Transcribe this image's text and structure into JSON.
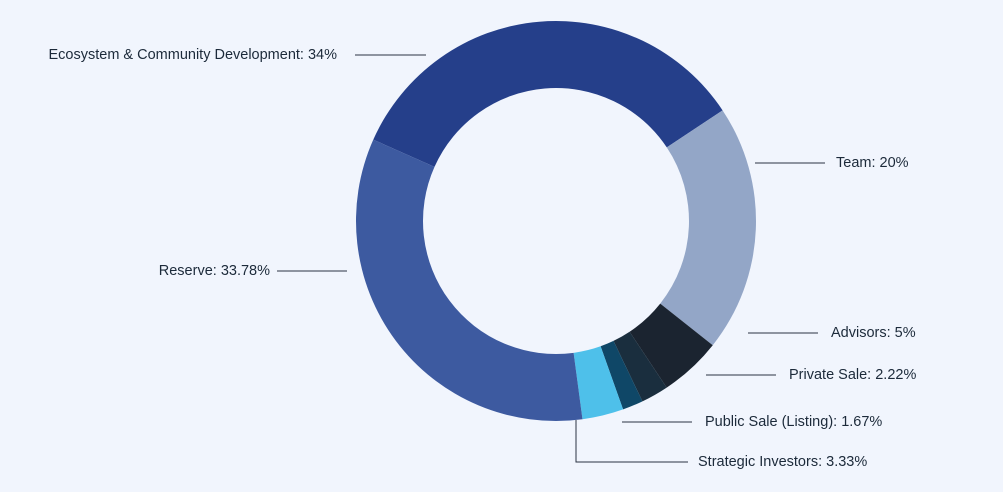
{
  "chart_data": {
    "type": "donut",
    "categories": [
      "Ecosystem & Community Development: 34%",
      "Team: 20%",
      "Advisors: 5%",
      "Private Sale: 2.22%",
      "Public Sale (Listing): 1.67%",
      "Strategic Investors: 3.33%",
      "Reserve: 33.78%"
    ],
    "values": [
      34,
      20,
      5,
      2.22,
      1.67,
      3.33,
      33.78
    ],
    "colors": [
      "#253f8a",
      "#93a6c7",
      "#1b2430",
      "#1a2e3e",
      "#0f4767",
      "#4ec0ea",
      "#3d5aa0"
    ]
  }
}
